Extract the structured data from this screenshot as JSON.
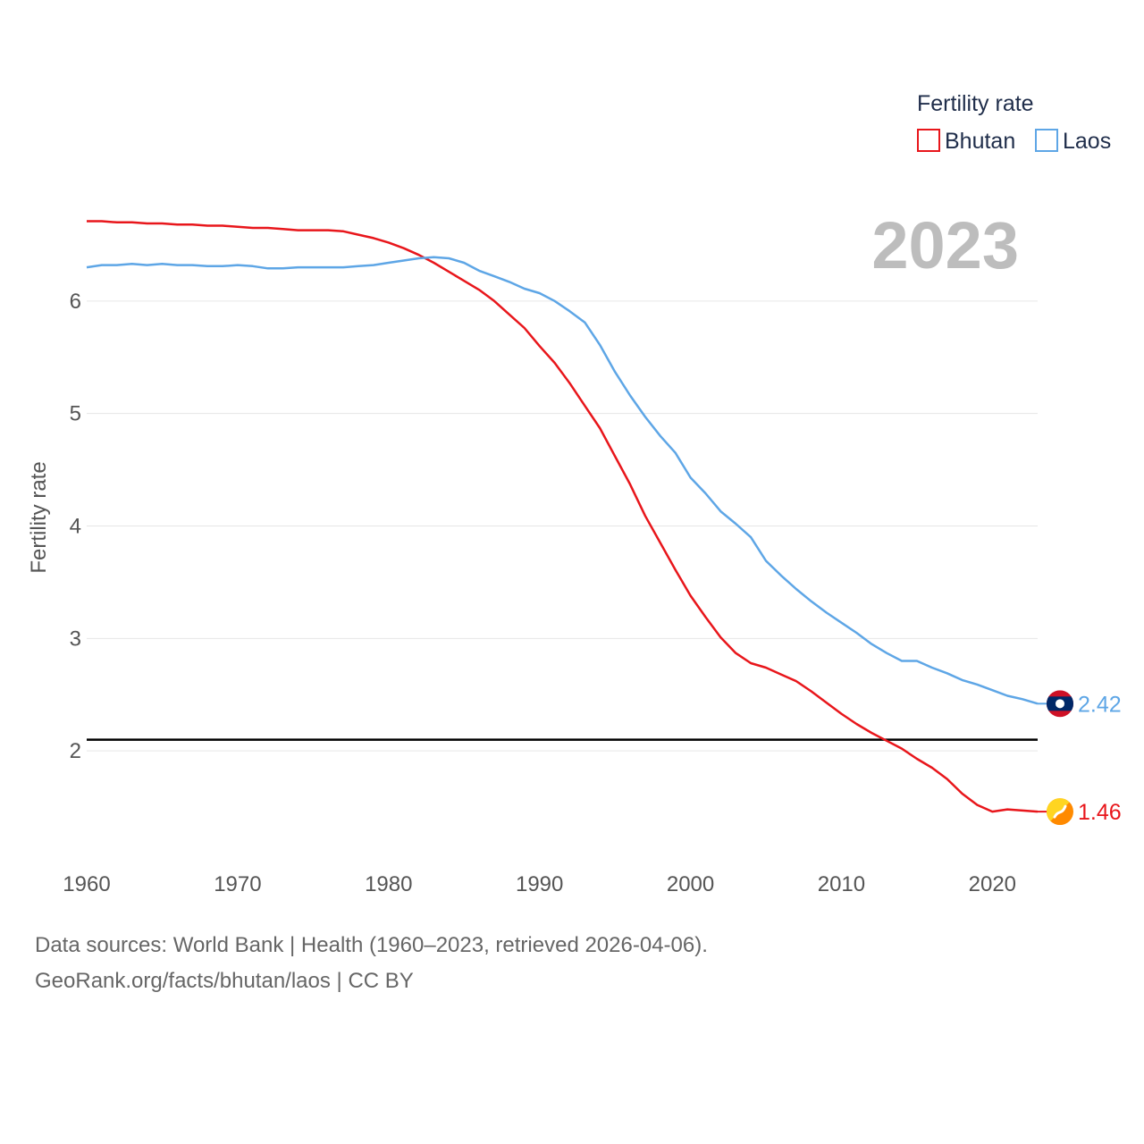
{
  "chart_data": {
    "type": "line",
    "legend": {
      "title": "Fertility rate",
      "position": "top-right"
    },
    "year_label": "2023",
    "ylabel": "Fertility rate",
    "xlim": [
      1960,
      2023
    ],
    "ylim": [
      1.0,
      7.0
    ],
    "x_ticks": [
      1960,
      1970,
      1980,
      1990,
      2000,
      2010,
      2020
    ],
    "y_ticks": [
      2,
      3,
      4,
      5,
      6
    ],
    "grid": true,
    "reference_line": {
      "y": 2.1,
      "color": "#000000"
    },
    "x": [
      1960,
      1961,
      1962,
      1963,
      1964,
      1965,
      1966,
      1967,
      1968,
      1969,
      1970,
      1971,
      1972,
      1973,
      1974,
      1975,
      1976,
      1977,
      1978,
      1979,
      1980,
      1981,
      1982,
      1983,
      1984,
      1985,
      1986,
      1987,
      1988,
      1989,
      1990,
      1991,
      1992,
      1993,
      1994,
      1995,
      1996,
      1997,
      1998,
      1999,
      2000,
      2001,
      2002,
      2003,
      2004,
      2005,
      2006,
      2007,
      2008,
      2009,
      2010,
      2011,
      2012,
      2013,
      2014,
      2015,
      2016,
      2017,
      2018,
      2019,
      2020,
      2021,
      2022,
      2023
    ],
    "series": [
      {
        "name": "Bhutan",
        "color": "#e8161b",
        "icon": "bhutan-flag-icon",
        "end_label": "1.46",
        "values": [
          6.71,
          6.71,
          6.7,
          6.7,
          6.69,
          6.69,
          6.68,
          6.68,
          6.67,
          6.67,
          6.66,
          6.65,
          6.65,
          6.64,
          6.63,
          6.63,
          6.63,
          6.62,
          6.59,
          6.56,
          6.52,
          6.47,
          6.41,
          6.34,
          6.26,
          6.18,
          6.1,
          6.0,
          5.88,
          5.76,
          5.6,
          5.45,
          5.27,
          5.07,
          4.87,
          4.62,
          4.37,
          4.09,
          3.85,
          3.61,
          3.38,
          3.19,
          3.01,
          2.87,
          2.78,
          2.74,
          2.68,
          2.62,
          2.53,
          2.43,
          2.33,
          2.24,
          2.16,
          2.09,
          2.02,
          1.93,
          1.85,
          1.75,
          1.62,
          1.52,
          1.46,
          1.48,
          1.47,
          1.46
        ]
      },
      {
        "name": "Laos",
        "color": "#5ea6e6",
        "icon": "laos-flag-icon",
        "end_label": "2.42",
        "values": [
          6.3,
          6.32,
          6.32,
          6.33,
          6.32,
          6.33,
          6.32,
          6.32,
          6.31,
          6.31,
          6.32,
          6.31,
          6.29,
          6.29,
          6.3,
          6.3,
          6.3,
          6.3,
          6.31,
          6.32,
          6.34,
          6.36,
          6.38,
          6.39,
          6.38,
          6.34,
          6.27,
          6.22,
          6.17,
          6.11,
          6.07,
          6.0,
          5.91,
          5.81,
          5.61,
          5.37,
          5.16,
          4.97,
          4.8,
          4.65,
          4.43,
          4.29,
          4.13,
          4.02,
          3.9,
          3.69,
          3.56,
          3.44,
          3.33,
          3.23,
          3.14,
          3.05,
          2.95,
          2.87,
          2.8,
          2.8,
          2.74,
          2.69,
          2.63,
          2.59,
          2.54,
          2.49,
          2.46,
          2.42
        ]
      }
    ]
  },
  "footer": {
    "line1": "Data sources: World Bank | Health (1960–2023, retrieved 2026-04-06).",
    "line2": "GeoRank.org/facts/bhutan/laos | CC BY"
  }
}
